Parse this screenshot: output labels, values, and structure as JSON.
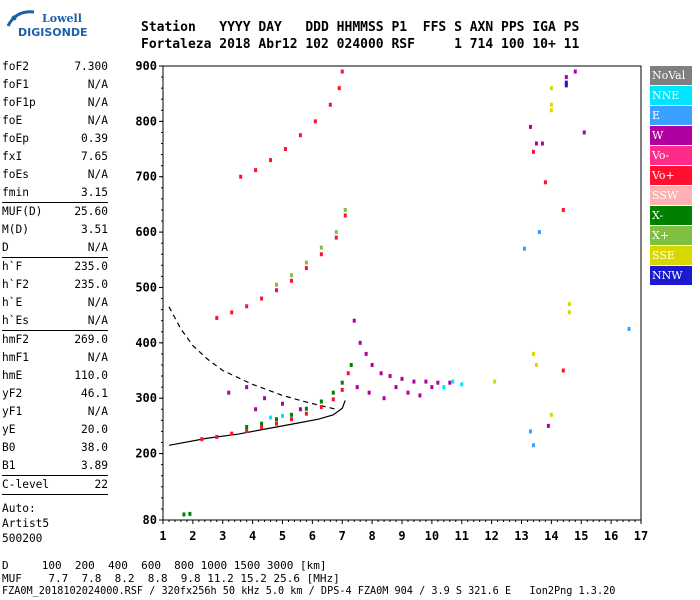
{
  "logo": {
    "line1": "Lowell",
    "line2": "DIGISONDE"
  },
  "header": {
    "line1": "Station   YYYY DAY   DDD HHMMSS P1  FFS S AXN PPS IGA PS",
    "line2": "Fortaleza 2018 Abr12 102 024000 RSF     1 714 100 10+ 11"
  },
  "side_groups": [
    [
      {
        "k": "foF2",
        "v": "7.300"
      },
      {
        "k": "foF1",
        "v": "N/A"
      },
      {
        "k": "foF1p",
        "v": "N/A"
      },
      {
        "k": "foE",
        "v": "N/A"
      },
      {
        "k": "foEp",
        "v": "0.39"
      },
      {
        "k": "fxI",
        "v": "7.65"
      },
      {
        "k": "foEs",
        "v": "N/A"
      },
      {
        "k": "fmin",
        "v": "3.15"
      }
    ],
    [
      {
        "k": "MUF(D)",
        "v": "25.60"
      },
      {
        "k": "M(D)",
        "v": "3.51"
      },
      {
        "k": "D",
        "v": "N/A"
      }
    ],
    [
      {
        "k": "h`F",
        "v": "235.0"
      },
      {
        "k": "h`F2",
        "v": "235.0"
      },
      {
        "k": "h`E",
        "v": "N/A"
      },
      {
        "k": "h`Es",
        "v": "N/A"
      }
    ],
    [
      {
        "k": "hmF2",
        "v": "269.0"
      },
      {
        "k": "hmF1",
        "v": "N/A"
      },
      {
        "k": "hmE",
        "v": "110.0"
      },
      {
        "k": "yF2",
        "v": "46.1"
      },
      {
        "k": "yF1",
        "v": "N/A"
      },
      {
        "k": "yE",
        "v": "20.0"
      },
      {
        "k": "B0",
        "v": "38.0"
      },
      {
        "k": "B1",
        "v": "3.89"
      }
    ],
    [
      {
        "k": "C-level",
        "v": "22"
      }
    ]
  ],
  "autoscaling": {
    "line1": "Auto:",
    "line2": "Artist5",
    "line3": "500200"
  },
  "footer": {
    "line1": "D     100  200  400  600  800 1000 1500 3000 [km]",
    "line2": "MUF    7.7  7.8  8.2  8.8  9.8 11.2 15.2 25.6 [MHz]",
    "line3": "FZA0M_2018102024000.RSF / 320fx256h 50 kHz 5.0 km / DPS-4 FZA0M 904 / 3.9 S 321.6 E   Ion2Png 1.3.20"
  },
  "legend": [
    {
      "label": "NoVal",
      "color": "#7f7f7f"
    },
    {
      "label": "NNE",
      "color": "#00e5ff"
    },
    {
      "label": "E",
      "color": "#3aa0ff"
    },
    {
      "label": "W",
      "color": "#b000a0"
    },
    {
      "label": "Vo-",
      "color": "#ff2a8a"
    },
    {
      "label": "Vo+",
      "color": "#ff1030"
    },
    {
      "label": "SSW",
      "color": "#ffb0b0"
    },
    {
      "label": "X-",
      "color": "#008000"
    },
    {
      "label": "X+",
      "color": "#80c040"
    },
    {
      "label": "SSE",
      "color": "#d8d800"
    },
    {
      "label": "NNW",
      "color": "#1a1ad0"
    }
  ],
  "chart_data": {
    "type": "scatter",
    "xlim": [
      1,
      17
    ],
    "ylim": [
      80,
      900
    ],
    "x_ticks": [
      "1",
      "2",
      "3",
      "4",
      "5",
      "6",
      "7",
      "8",
      "9",
      "10",
      "11",
      "12",
      "13",
      "14",
      "15",
      "16",
      "17"
    ],
    "y_ticks": [
      {
        "label": "900",
        "value": 900
      },
      {
        "label": "800",
        "value": 800
      },
      {
        "label": "700",
        "value": 700
      },
      {
        "label": "600",
        "value": 600
      },
      {
        "label": "500",
        "value": 500
      },
      {
        "label": "400",
        "value": 400
      },
      {
        "label": "300",
        "value": 300
      },
      {
        "label": "200",
        "value": 200
      },
      {
        "label": "80",
        "value": 80
      }
    ],
    "profile_solid": [
      [
        1.2,
        215
      ],
      [
        2.5,
        228
      ],
      [
        3.5,
        235
      ],
      [
        4.5,
        245
      ],
      [
        5.5,
        255
      ],
      [
        6.2,
        262
      ],
      [
        6.7,
        270
      ],
      [
        7.0,
        282
      ],
      [
        7.1,
        296
      ]
    ],
    "profile_dashed": [
      [
        1.2,
        465
      ],
      [
        1.6,
        425
      ],
      [
        2.0,
        395
      ],
      [
        2.5,
        370
      ],
      [
        3.0,
        350
      ],
      [
        4.0,
        325
      ],
      [
        5.0,
        305
      ],
      [
        5.8,
        293
      ],
      [
        6.4,
        285
      ],
      [
        6.8,
        280
      ]
    ],
    "traces": [
      {
        "name": "hop1_O",
        "color": "#ff1030",
        "points": [
          [
            2.3,
            226
          ],
          [
            2.8,
            230
          ],
          [
            3.3,
            236
          ],
          [
            3.8,
            241
          ],
          [
            4.3,
            247
          ],
          [
            4.8,
            254
          ],
          [
            5.3,
            262
          ],
          [
            5.8,
            272
          ],
          [
            6.3,
            284
          ],
          [
            6.7,
            298
          ],
          [
            7.0,
            315
          ],
          [
            7.2,
            345
          ]
        ]
      },
      {
        "name": "hop1_X",
        "color": "#008000",
        "points": [
          [
            3.8,
            248
          ],
          [
            4.3,
            254
          ],
          [
            4.8,
            262
          ],
          [
            5.3,
            270
          ],
          [
            5.8,
            281
          ],
          [
            6.3,
            294
          ],
          [
            6.7,
            310
          ],
          [
            7.0,
            328
          ],
          [
            7.3,
            360
          ]
        ]
      },
      {
        "name": "hop2_O",
        "color": "#ff1030",
        "points": [
          [
            2.8,
            445
          ],
          [
            3.3,
            455
          ],
          [
            3.8,
            466
          ],
          [
            4.3,
            480
          ],
          [
            4.8,
            495
          ],
          [
            5.3,
            512
          ],
          [
            5.8,
            535
          ],
          [
            6.3,
            560
          ],
          [
            6.8,
            590
          ],
          [
            7.1,
            630
          ]
        ]
      },
      {
        "name": "hop2_X",
        "color": "#80c040",
        "points": [
          [
            4.8,
            505
          ],
          [
            5.3,
            522
          ],
          [
            5.8,
            545
          ],
          [
            6.3,
            572
          ],
          [
            6.8,
            600
          ],
          [
            7.1,
            640
          ]
        ]
      },
      {
        "name": "hop3_O",
        "color": "#ff1030",
        "points": [
          [
            3.6,
            700
          ],
          [
            4.1,
            712
          ],
          [
            4.6,
            730
          ],
          [
            5.1,
            750
          ],
          [
            5.6,
            775
          ],
          [
            6.1,
            800
          ],
          [
            6.6,
            830
          ],
          [
            6.9,
            860
          ],
          [
            7.0,
            890
          ]
        ]
      },
      {
        "name": "spread_W",
        "color": "#b000a0",
        "points": [
          [
            7.4,
            440
          ],
          [
            7.6,
            400
          ],
          [
            7.8,
            380
          ],
          [
            8.0,
            360
          ],
          [
            8.3,
            345
          ],
          [
            8.6,
            340
          ],
          [
            9.0,
            335
          ],
          [
            9.4,
            330
          ],
          [
            9.8,
            330
          ],
          [
            10.2,
            328
          ],
          [
            10.6,
            328
          ],
          [
            7.5,
            320
          ],
          [
            7.9,
            310
          ],
          [
            8.4,
            300
          ],
          [
            8.8,
            320
          ],
          [
            9.2,
            310
          ],
          [
            9.6,
            305
          ],
          [
            10.0,
            320
          ],
          [
            3.2,
            310
          ],
          [
            3.8,
            320
          ],
          [
            4.4,
            300
          ],
          [
            5.0,
            290
          ],
          [
            4.1,
            280
          ],
          [
            5.6,
            280
          ]
        ]
      },
      {
        "name": "echo_NNE",
        "color": "#00e5ff",
        "points": [
          [
            10.4,
            320
          ],
          [
            10.7,
            330
          ],
          [
            11.0,
            325
          ],
          [
            4.6,
            265
          ],
          [
            5.0,
            268
          ]
        ]
      },
      {
        "name": "stray_SSE",
        "color": "#d8d800",
        "points": [
          [
            13.4,
            380
          ],
          [
            13.5,
            360
          ],
          [
            14.0,
            860
          ],
          [
            14.0,
            830
          ],
          [
            14.0,
            820
          ],
          [
            14.6,
            470
          ],
          [
            14.6,
            455
          ],
          [
            14.0,
            270
          ],
          [
            12.1,
            330
          ]
        ]
      },
      {
        "name": "stray_misc",
        "color": "#3aa0ff",
        "points": [
          [
            13.1,
            570
          ],
          [
            13.3,
            240
          ],
          [
            13.4,
            215
          ],
          [
            13.6,
            600
          ],
          [
            16.6,
            425
          ]
        ]
      },
      {
        "name": "stray_W",
        "color": "#b000a0",
        "points": [
          [
            13.3,
            790
          ],
          [
            13.5,
            760
          ],
          [
            13.7,
            760
          ],
          [
            13.9,
            250
          ],
          [
            14.5,
            880
          ],
          [
            14.8,
            890
          ],
          [
            15.1,
            780
          ]
        ]
      },
      {
        "name": "stray_red",
        "color": "#ff1030",
        "points": [
          [
            13.4,
            745
          ],
          [
            13.8,
            690
          ],
          [
            14.4,
            350
          ],
          [
            14.4,
            640
          ]
        ]
      },
      {
        "name": "stray_NNW",
        "color": "#1a1ad0",
        "points": [
          [
            14.5,
            870
          ],
          [
            14.5,
            865
          ]
        ]
      },
      {
        "name": "low_X",
        "color": "#008000",
        "points": [
          [
            1.7,
            90
          ],
          [
            1.9,
            91
          ]
        ]
      }
    ]
  }
}
